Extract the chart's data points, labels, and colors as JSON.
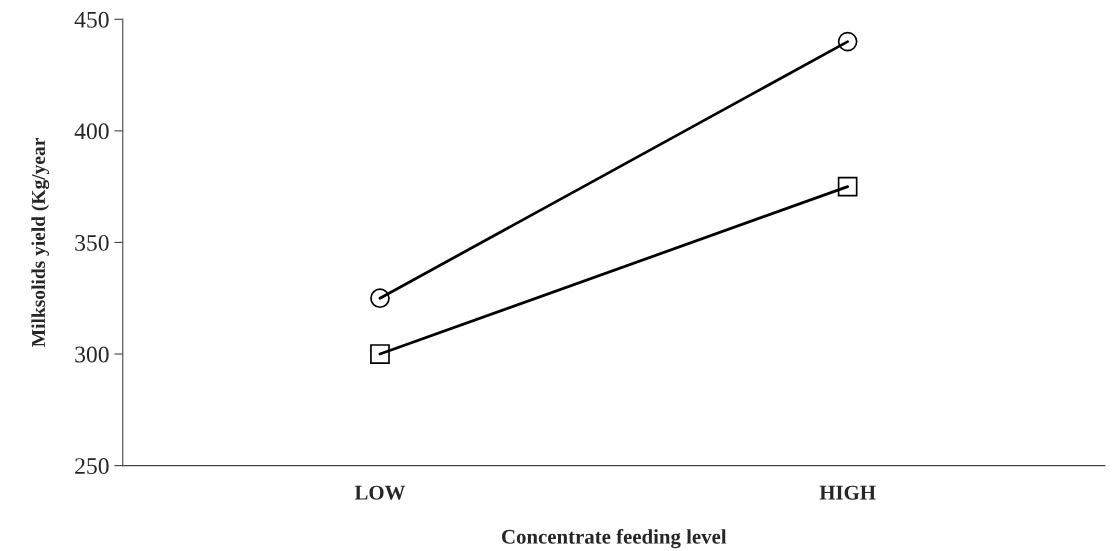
{
  "chart_data": {
    "type": "line",
    "xlabel": "Concentrate feeding level",
    "ylabel": "Milksolids yield (Kg/year",
    "categories": [
      "LOW",
      "HIGH"
    ],
    "series": [
      {
        "color": "#000000",
        "marker": "circle",
        "values": [
          325,
          440
        ]
      },
      {
        "color": "#000000",
        "marker": "square",
        "values": [
          300,
          375
        ]
      }
    ],
    "ylim": [
      250,
      450
    ],
    "yticks": [
      250,
      300,
      350,
      400,
      450
    ],
    "grid": false,
    "legend": false,
    "line_style": "solid"
  }
}
